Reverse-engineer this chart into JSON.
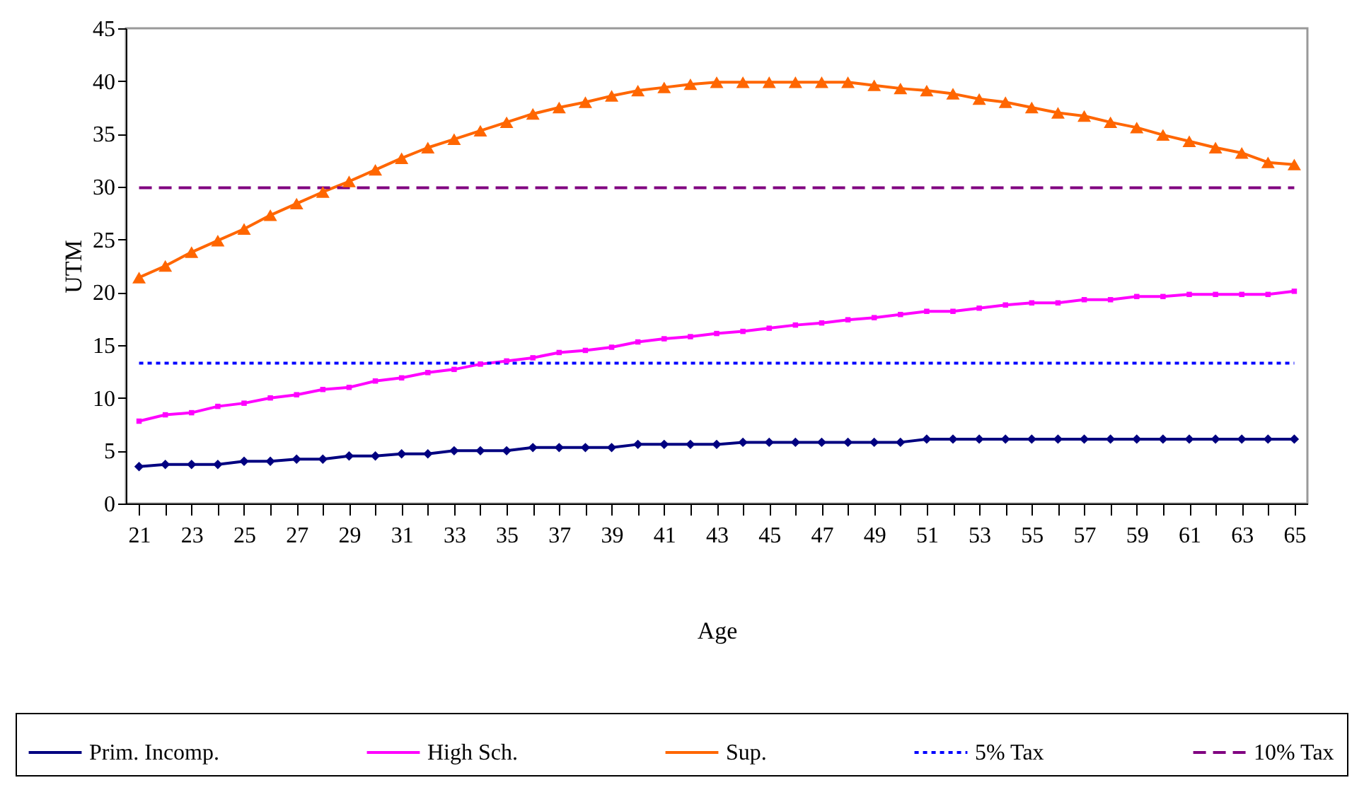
{
  "chart_data": {
    "type": "line",
    "xlabel": "Age",
    "ylabel": "UTM",
    "categories": [
      "21",
      null,
      "23",
      null,
      "25",
      null,
      "27",
      null,
      "29",
      null,
      "31",
      null,
      "33",
      null,
      "35",
      null,
      "37",
      null,
      "39",
      null,
      "41",
      null,
      "43",
      null,
      "45",
      null,
      "47",
      null,
      "49",
      null,
      "51",
      null,
      "53",
      null,
      "55",
      null,
      "57",
      null,
      "59",
      null,
      "61",
      null,
      "63",
      null,
      "65"
    ],
    "ylim": [
      0,
      45
    ],
    "yticks": [
      0,
      5,
      10,
      15,
      20,
      25,
      30,
      35,
      40,
      45
    ],
    "grid": false,
    "legend": "bottom",
    "series": [
      {
        "name": "Prim. Incomp.",
        "color": "#000080",
        "marker": "diamond",
        "line_style": "solid",
        "values": [
          3.5,
          3.7,
          3.7,
          3.7,
          4.0,
          4.0,
          4.2,
          4.2,
          4.5,
          4.5,
          4.7,
          4.7,
          5.0,
          5.0,
          5.0,
          5.3,
          5.3,
          5.3,
          5.3,
          5.6,
          5.6,
          5.6,
          5.6,
          5.8,
          5.8,
          5.8,
          5.8,
          5.8,
          5.8,
          5.8,
          6.1,
          6.1,
          6.1,
          6.1,
          6.1,
          6.1,
          6.1,
          6.1,
          6.1,
          6.1,
          6.1,
          6.1,
          6.1,
          6.1,
          6.1
        ]
      },
      {
        "name": "High Sch.",
        "color": "#ff00ff",
        "marker": "square",
        "line_style": "solid",
        "values": [
          7.8,
          8.4,
          8.6,
          9.2,
          9.5,
          10.0,
          10.3,
          10.8,
          11.0,
          11.6,
          11.9,
          12.4,
          12.7,
          13.2,
          13.5,
          13.8,
          14.3,
          14.5,
          14.8,
          15.3,
          15.6,
          15.8,
          16.1,
          16.3,
          16.6,
          16.9,
          17.1,
          17.4,
          17.6,
          17.9,
          18.2,
          18.2,
          18.5,
          18.8,
          19.0,
          19.0,
          19.3,
          19.3,
          19.6,
          19.6,
          19.8,
          19.8,
          19.8,
          19.8,
          20.1
        ]
      },
      {
        "name": "Sup.",
        "color": "#ff6600",
        "marker": "triangle",
        "line_style": "solid",
        "values": [
          21.4,
          22.5,
          23.8,
          24.9,
          26.0,
          27.3,
          28.4,
          29.5,
          30.5,
          31.6,
          32.7,
          33.7,
          34.5,
          35.3,
          36.1,
          36.9,
          37.5,
          38.0,
          38.6,
          39.1,
          39.4,
          39.7,
          39.9,
          39.9,
          39.9,
          39.9,
          39.9,
          39.9,
          39.6,
          39.3,
          39.1,
          38.8,
          38.3,
          38.0,
          37.5,
          37.0,
          36.7,
          36.1,
          35.6,
          34.9,
          34.3,
          33.7,
          33.2,
          32.3,
          32.1
        ]
      },
      {
        "name": "5% Tax",
        "color": "#0000ff",
        "marker": "none",
        "line_style": "dotted",
        "values": [
          13.3,
          13.3,
          13.3,
          13.3,
          13.3,
          13.3,
          13.3,
          13.3,
          13.3,
          13.3,
          13.3,
          13.3,
          13.3,
          13.3,
          13.3,
          13.3,
          13.3,
          13.3,
          13.3,
          13.3,
          13.3,
          13.3,
          13.3,
          13.3,
          13.3,
          13.3,
          13.3,
          13.3,
          13.3,
          13.3,
          13.3,
          13.3,
          13.3,
          13.3,
          13.3,
          13.3,
          13.3,
          13.3,
          13.3,
          13.3,
          13.3,
          13.3,
          13.3,
          13.3,
          13.3
        ]
      },
      {
        "name": "10% Tax",
        "color": "#800080",
        "marker": "none",
        "line_style": "dashed",
        "values": [
          29.9,
          29.9,
          29.9,
          29.9,
          29.9,
          29.9,
          29.9,
          29.9,
          29.9,
          29.9,
          29.9,
          29.9,
          29.9,
          29.9,
          29.9,
          29.9,
          29.9,
          29.9,
          29.9,
          29.9,
          29.9,
          29.9,
          29.9,
          29.9,
          29.9,
          29.9,
          29.9,
          29.9,
          29.9,
          29.9,
          29.9,
          29.9,
          29.9,
          29.9,
          29.9,
          29.9,
          29.9,
          29.9,
          29.9,
          29.9,
          29.9,
          29.9,
          29.9,
          29.9,
          29.9
        ]
      }
    ]
  }
}
